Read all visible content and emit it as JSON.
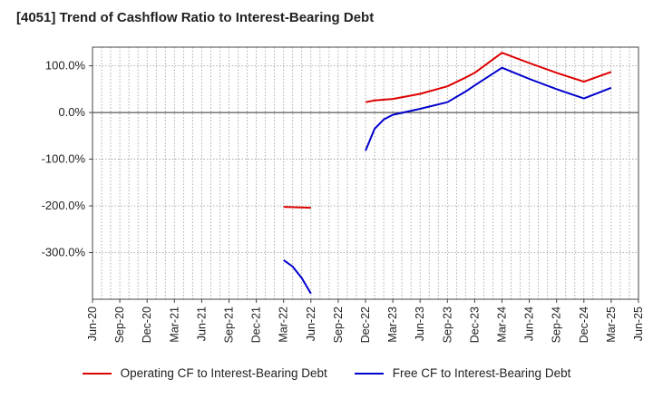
{
  "chart_data": {
    "type": "line",
    "title": "[4051]  Trend of Cashflow Ratio to Interest-Bearing Debt",
    "xlabel": "",
    "ylabel": "",
    "x_tick_labels": [
      "Jun-20",
      "Sep-20",
      "Dec-20",
      "Mar-21",
      "Jun-21",
      "Sep-21",
      "Dec-21",
      "Mar-22",
      "Jun-22",
      "Sep-22",
      "Dec-22",
      "Mar-23",
      "Jun-23",
      "Sep-23",
      "Dec-23",
      "Mar-24",
      "Jun-24",
      "Sep-24",
      "Dec-24",
      "Mar-25",
      "Jun-25"
    ],
    "y_ticks": [
      100,
      0,
      -100,
      -200,
      -300
    ],
    "y_tick_labels": [
      "100.0%",
      "0.0%",
      "-100.0%",
      "-200.0%",
      "-300.0%"
    ],
    "ylim": [
      -400,
      140
    ],
    "grid": true,
    "legend_position": "bottom",
    "series": [
      {
        "name": "Operating CF to Interest-Bearing Debt",
        "color": "#dd0000",
        "segments": [
          [
            [
              "Mar-22",
              -202
            ],
            [
              "Jun-22",
              -204
            ]
          ],
          [
            [
              "Dec-22",
              22
            ],
            [
              "Jan-23",
              26
            ],
            [
              "Mar-23",
              29
            ],
            [
              "Jun-23",
              40
            ],
            [
              "Sep-23",
              56
            ],
            [
              "Nov-23",
              75
            ],
            [
              "Dec-23",
              85
            ],
            [
              "Mar-24",
              128
            ],
            [
              "Jun-24",
              106
            ],
            [
              "Sep-24",
              85
            ],
            [
              "Dec-24",
              66
            ],
            [
              "Mar-25",
              87
            ]
          ]
        ]
      },
      {
        "name": "Free CF to Interest-Bearing Debt",
        "color": "#0000cc",
        "segments": [
          [
            [
              "Mar-22",
              -316
            ],
            [
              "Apr-22",
              -330
            ],
            [
              "May-22",
              -355
            ],
            [
              "Jun-22",
              -388
            ]
          ],
          [
            [
              "Dec-22",
              -82
            ],
            [
              "Jan-23",
              -35
            ],
            [
              "Feb-23",
              -15
            ],
            [
              "Mar-23",
              -5
            ],
            [
              "Jun-23",
              8
            ],
            [
              "Sep-23",
              22
            ],
            [
              "Nov-23",
              45
            ],
            [
              "Dec-23",
              58
            ],
            [
              "Mar-24",
              96
            ],
            [
              "Jun-24",
              72
            ],
            [
              "Sep-24",
              50
            ],
            [
              "Dec-24",
              30
            ],
            [
              "Mar-25",
              53
            ]
          ]
        ]
      }
    ]
  }
}
